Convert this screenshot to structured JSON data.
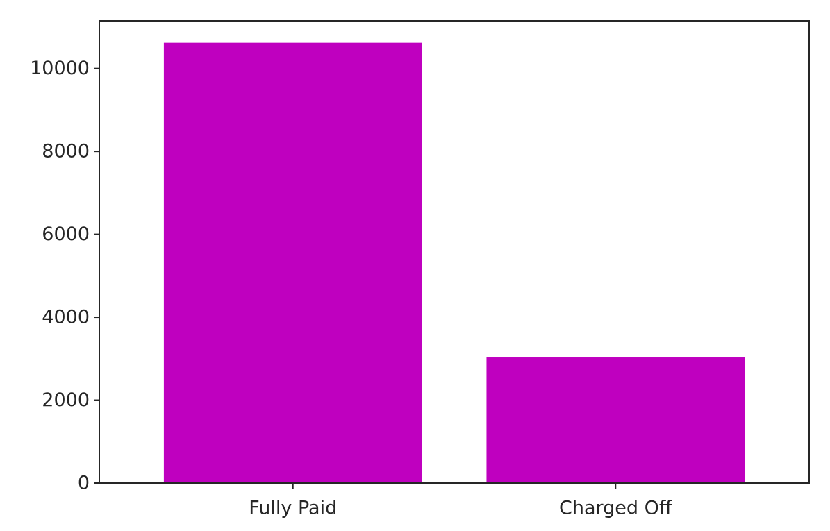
{
  "chart_data": {
    "type": "bar",
    "categories": [
      "Fully Paid",
      "Charged Off"
    ],
    "values": [
      10620,
      3030
    ],
    "title": "",
    "xlabel": "",
    "ylabel": "",
    "ylim": [
      0,
      11150
    ],
    "yticks": [
      0,
      2000,
      4000,
      6000,
      8000,
      10000
    ],
    "grid": false,
    "legend": "none",
    "bar_color": "#bf00bf"
  }
}
